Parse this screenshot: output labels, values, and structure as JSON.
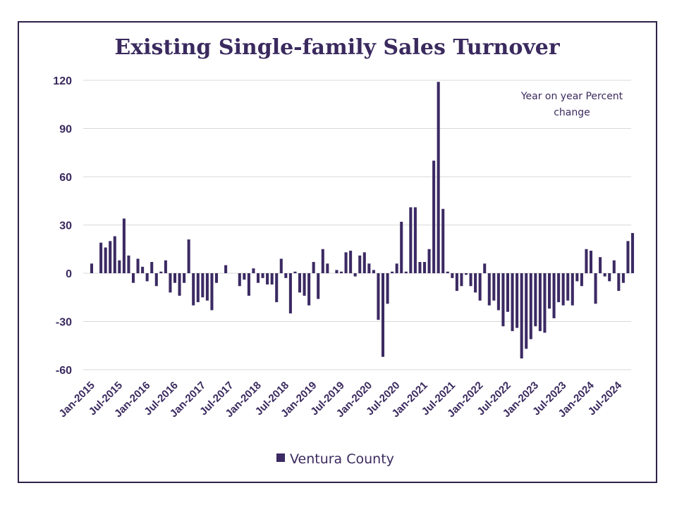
{
  "colors": {
    "bar": "#3b2a63",
    "text": "#3a2a5e",
    "grid": "#d9d9d9",
    "frame": "#2e2248"
  },
  "chart_data": {
    "type": "bar",
    "title": "Existing Single-family Sales Turnover",
    "annotation": [
      "Year on year Percent",
      "change"
    ],
    "ylim": [
      -60,
      120
    ],
    "yticks": [
      120,
      90,
      60,
      30,
      0,
      -30,
      -60
    ],
    "xtick_labels": [
      "Jan-2015",
      "Jul-2015",
      "Jan-2016",
      "Jul-2016",
      "Jan-2017",
      "Jul-2017",
      "Jan-2018",
      "Jul-2018",
      "Jan-2019",
      "Jul-2019",
      "Jan-2020",
      "Jul-2020",
      "Jan-2021",
      "Jul-2021",
      "Jan-2022",
      "Jul-2022",
      "Jan-2023",
      "Jul-2023",
      "Jan-2024",
      "Jul-2024"
    ],
    "grid": true,
    "legend": {
      "placement": "bottom"
    },
    "series": [
      {
        "name": "Ventura County",
        "values": [
          6,
          0,
          19,
          16,
          20,
          23,
          8,
          34,
          11,
          -6,
          9,
          4,
          -5,
          7,
          -8,
          1,
          8,
          -12,
          -6,
          -14,
          -6,
          21,
          -20,
          -18,
          -15,
          -17,
          -23,
          -6,
          0,
          5,
          0,
          0,
          -8,
          -4,
          -14,
          3,
          -6,
          -3,
          -7,
          -7,
          -18,
          9,
          -3,
          -25,
          1,
          -12,
          -14,
          -20,
          7,
          -16,
          15,
          6,
          0,
          2,
          1,
          13,
          14,
          -2,
          11,
          13,
          6,
          2,
          -29,
          -52,
          -19,
          1,
          6,
          32,
          1,
          41,
          41,
          7,
          7,
          15,
          70,
          119,
          40,
          1,
          -3,
          -11,
          -8,
          -1,
          -8,
          -12,
          -17,
          6,
          -20,
          -17,
          -23,
          -33,
          -24,
          -36,
          -34,
          -53,
          -47,
          -41,
          -33,
          -36,
          -37,
          -22,
          -28,
          -18,
          -20,
          -17,
          -20,
          -5,
          -8,
          15,
          14,
          -19,
          10,
          -2,
          -5,
          8,
          -11,
          -6,
          20,
          25
        ]
      }
    ]
  }
}
